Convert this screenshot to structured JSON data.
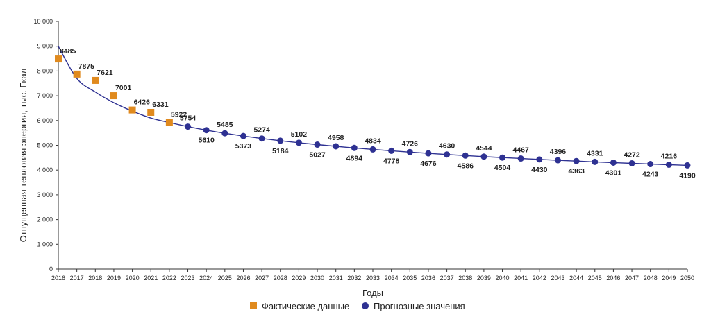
{
  "chart_data": {
    "type": "scatter",
    "xlabel": "Годы",
    "ylabel": "Отпущенная тепловая энергия, тыс. Гкал",
    "ylim": [
      0,
      10000
    ],
    "yticks": [
      0,
      1000,
      2000,
      3000,
      4000,
      5000,
      6000,
      7000,
      8000,
      9000,
      10000
    ],
    "ytick_labels": [
      "0",
      "1 000",
      "2 000",
      "3 000",
      "4 000",
      "5 000",
      "6 000",
      "7 000",
      "8 000",
      "9 000",
      "10 000"
    ],
    "xlim": [
      2016,
      2050
    ],
    "categories": [
      2016,
      2017,
      2018,
      2019,
      2020,
      2021,
      2022,
      2023,
      2024,
      2025,
      2026,
      2027,
      2028,
      2029,
      2030,
      2031,
      2032,
      2033,
      2034,
      2035,
      2036,
      2037,
      2038,
      2039,
      2040,
      2041,
      2042,
      2043,
      2044,
      2045,
      2046,
      2047,
      2048,
      2049,
      2050
    ],
    "grid": false,
    "legend_position": "bottom",
    "series": [
      {
        "name": "Фактические данные",
        "marker": "square",
        "color": "#E08A1E",
        "x": [
          2016,
          2017,
          2018,
          2019,
          2020,
          2021,
          2022
        ],
        "values": [
          8485,
          7875,
          7621,
          7001,
          6426,
          6331,
          5922
        ]
      },
      {
        "name": "Прогнозные значения",
        "marker": "circle",
        "color": "#2E3192",
        "x": [
          2023,
          2024,
          2025,
          2026,
          2027,
          2028,
          2029,
          2030,
          2031,
          2032,
          2033,
          2034,
          2035,
          2036,
          2037,
          2038,
          2039,
          2040,
          2041,
          2042,
          2043,
          2044,
          2045,
          2046,
          2047,
          2048,
          2049,
          2050
        ],
        "values": [
          5754,
          5610,
          5485,
          5373,
          5274,
          5184,
          5102,
          5027,
          4958,
          4894,
          4834,
          4778,
          4726,
          4676,
          4630,
          4586,
          4544,
          4504,
          4467,
          4430,
          4396,
          4363,
          4331,
          4301,
          4272,
          4243,
          4216,
          4190
        ]
      }
    ],
    "trend_line": {
      "color": "#2E3192",
      "x": [
        2016,
        2017,
        2018,
        2019,
        2020,
        2021,
        2022,
        2023
      ],
      "values": [
        9000,
        7700,
        7150,
        6720,
        6380,
        6100,
        5920,
        5754
      ]
    }
  }
}
